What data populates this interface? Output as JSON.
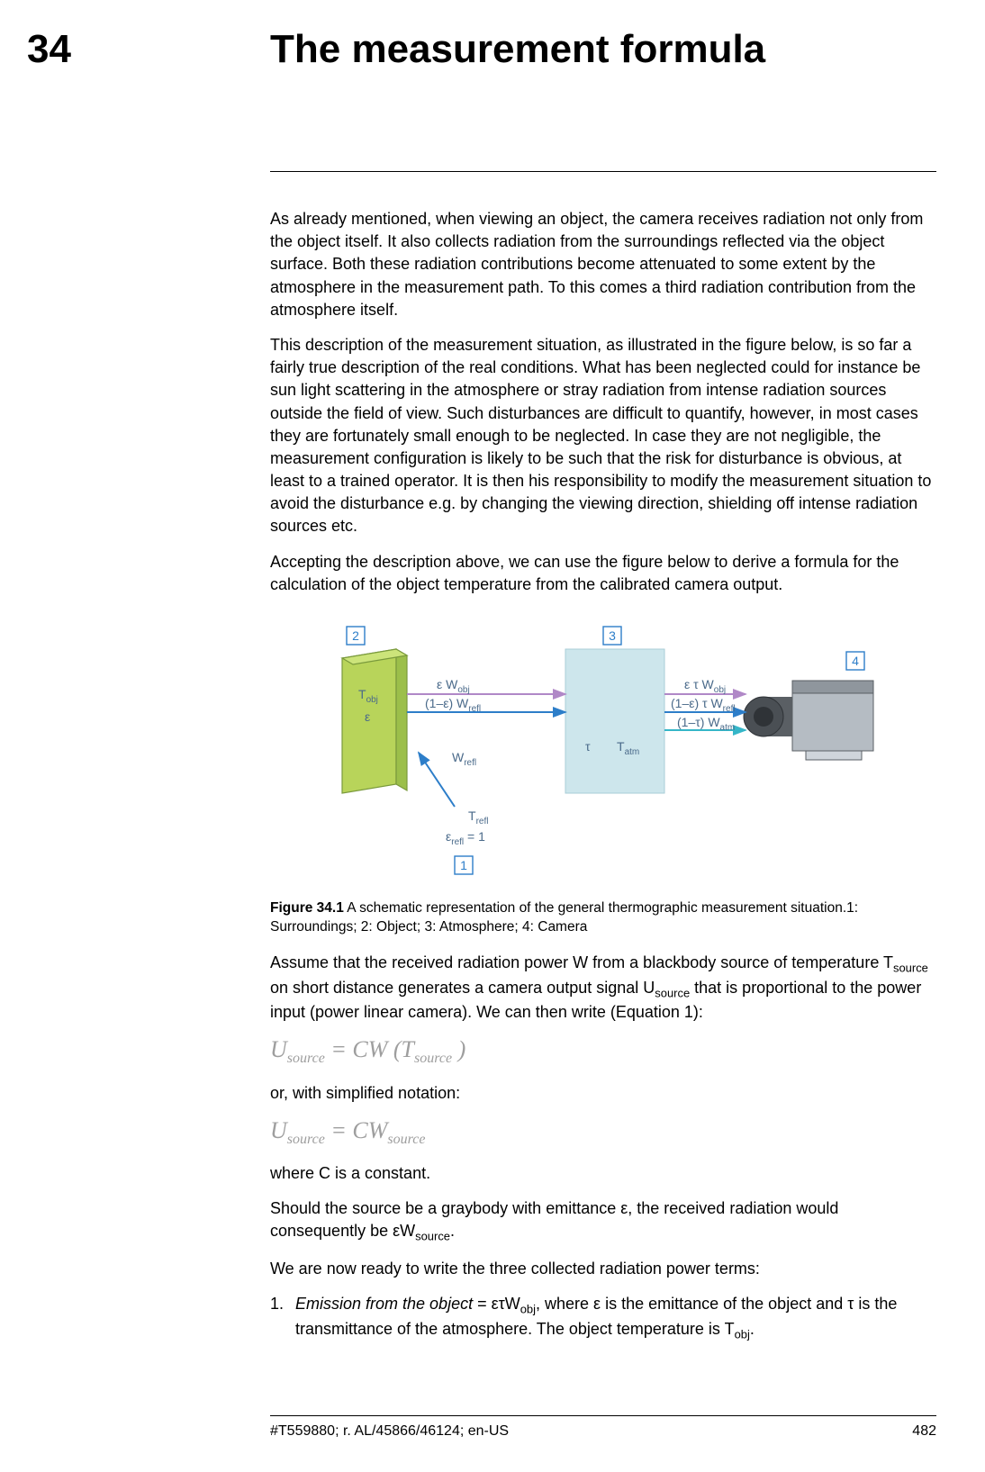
{
  "header": {
    "chapter_number": "34",
    "chapter_title": "The measurement formula"
  },
  "paragraphs": {
    "p1": "As already mentioned, when viewing an object, the camera receives radiation not only from the object itself. It also collects radiation from the surroundings reflected via the object surface. Both these radiation contributions become attenuated to some extent by the atmosphere in the measurement path. To this comes a third radiation contribution from the atmosphere itself.",
    "p2": "This description of the measurement situation, as illustrated in the figure below, is so far a fairly true description of the real conditions. What has been neglected could for instance be sun light scattering in the atmosphere or stray radiation from intense radiation sources outside the field of view. Such disturbances are difficult to quantify, however, in most cases they are fortunately small enough to be neglected. In case they are not negligible, the measurement configuration is likely to be such that the risk for disturbance is obvious, at least to a trained operator. It is then his responsibility to modify the measurement situation to avoid the disturbance e.g. by changing the viewing direction, shielding off intense radiation sources etc.",
    "p3": "Accepting the description above, we can use the figure below to derive a formula for the calculation of the object temperature from the calibrated camera output.",
    "p4a": "Assume that the received radiation power W from a blackbody source of temperature T",
    "p4b": " on short distance generates a camera output signal U",
    "p4c": " that is proportional to the power input (power linear camera). We can then write (Equation 1):",
    "p5": "or, with simplified notation:",
    "p6": "where C is a constant.",
    "p7a": "Should the source be a graybody with emittance ε, the received radiation would consequently be εW",
    "p7b": ".",
    "p8": "We are now ready to write the three collected radiation power terms:",
    "li1_a": "Emission from the object",
    "li1_b": " = ετW",
    "li1_c": ", where ε is the emittance of the object and τ is the transmittance of the atmosphere. The object temperature is T",
    "li1_d": "."
  },
  "subscripts": {
    "source": "source",
    "obj": "obj"
  },
  "figure": {
    "caption_bold": "Figure 34.1",
    "caption_rest": "  A schematic representation of the general thermographic measurement situation.1: Surroundings; 2: Object; 3: Atmosphere; 4: Camera",
    "callouts": {
      "c1": "1",
      "c2": "2",
      "c3": "3",
      "c4": "4"
    },
    "labels": {
      "Tobj": "T",
      "Tobj_sub": "obj",
      "eps": "ε",
      "eWobj": "ε W",
      "eWobj_sub": "obj",
      "oneminus_e_Wrefl": "(1–ε) W",
      "refl_sub": "refl",
      "Wrefl": "W",
      "etWobj": "ε τ W",
      "oneminus_e_t_Wrefl": "(1–ε) τ W",
      "oneminus_t_Watm": "(1–τ) W",
      "atm_sub": "atm",
      "tau": "τ",
      "Tatm": "T",
      "Tatm_sub": "atm",
      "Trefl": "T",
      "eps_refl_eq_1": "ε",
      "eps_refl_eq_1_rest": " = 1"
    },
    "colors": {
      "object_fill": "#b8d45a",
      "object_stroke": "#7a9a3c",
      "atm_fill": "#cde6ec",
      "atm_stroke": "#a9cdd7",
      "camera_body": "#9aa0a6",
      "camera_dark": "#5a5f64",
      "arrow_purple": "#b088c7",
      "arrow_blue": "#2d7ec9",
      "arrow_cyan": "#35b6c8",
      "callout_border": "#2d7ec9",
      "label_text": "#4a6a8a"
    }
  },
  "equations": {
    "eq1_html": "U<sub>source</sub> = CW (T<sub>source</sub> )",
    "eq2_html": "U<sub>source</sub> = CW<sub>source</sub>"
  },
  "footer": {
    "doc_id": "#T559880; r. AL/45866/46124; en-US",
    "page": "482"
  },
  "list": {
    "num1": "1."
  }
}
